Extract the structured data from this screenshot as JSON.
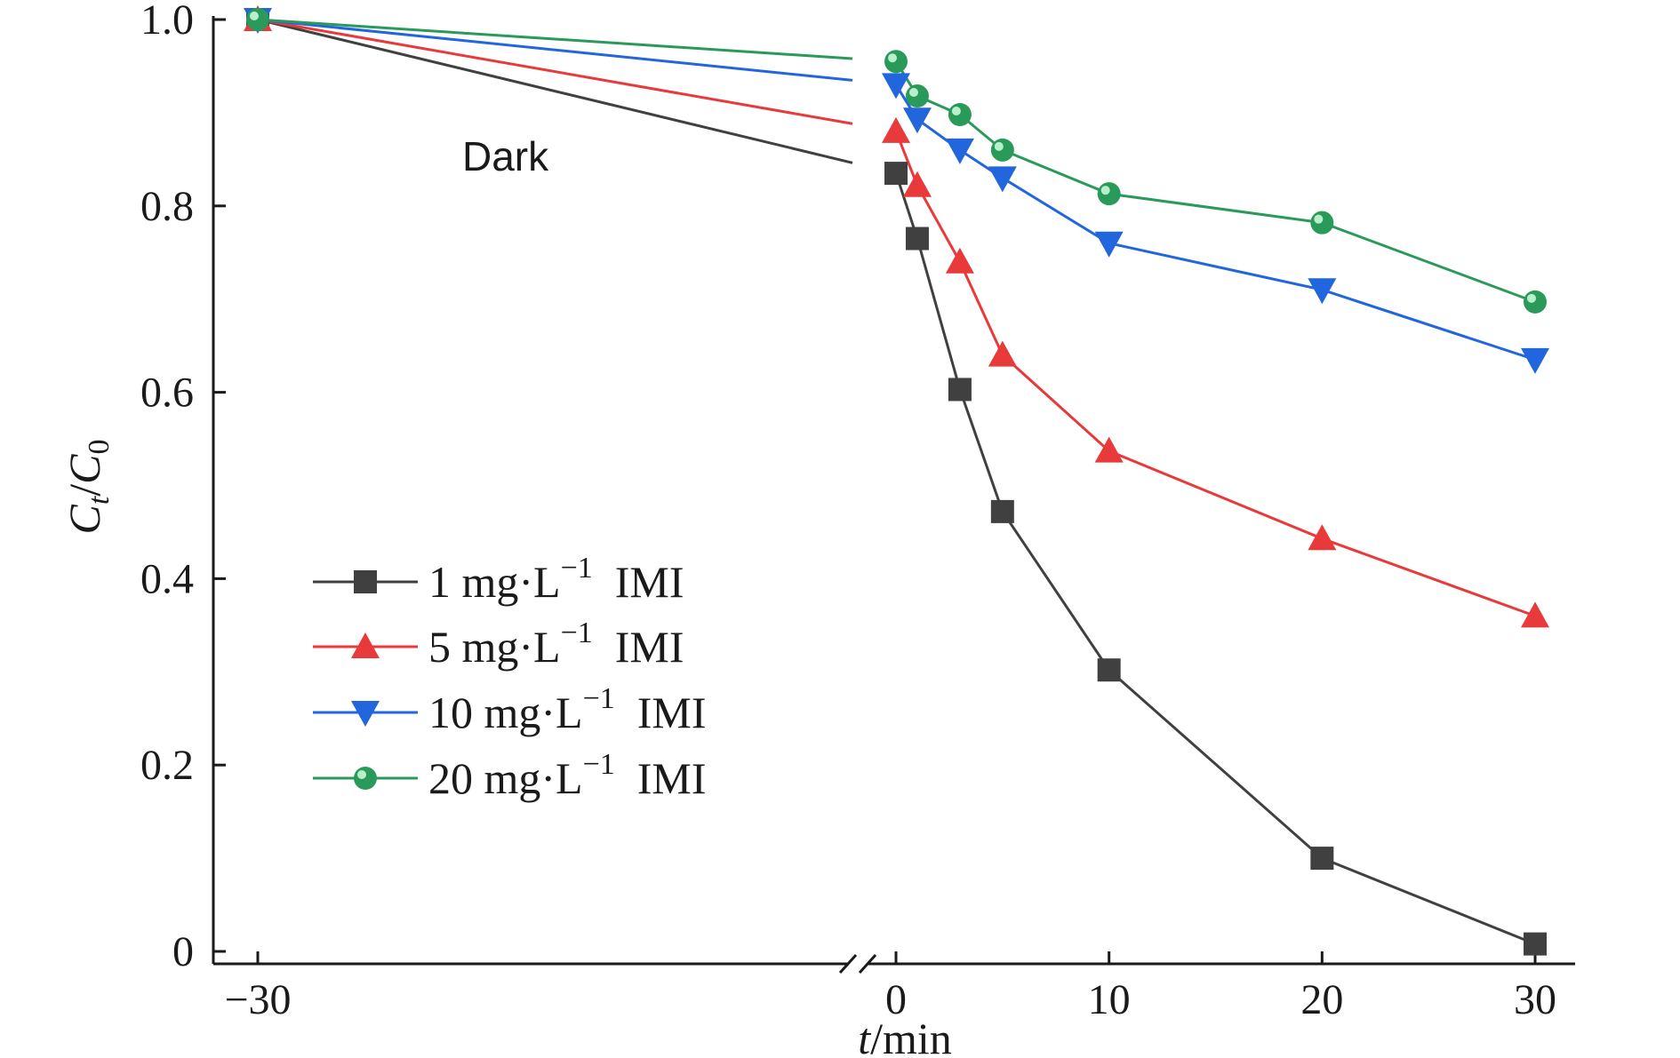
{
  "chart_data": {
    "type": "line",
    "title": "",
    "xlabel": "t/min",
    "ylabel": "Ct/C0",
    "x_ticks": [
      "−30",
      "0",
      "10",
      "20",
      "30"
    ],
    "y_ticks": [
      "0",
      "0.2",
      "0.4",
      "0.6",
      "0.8",
      "1.0"
    ],
    "ylim": [
      0,
      1.0
    ],
    "axis_break": "between −30 and 0",
    "annotation": "Dark",
    "legend_position": "lower-left",
    "series": [
      {
        "name": "1 mg·L⁻¹  IMI",
        "name_main": "1 mg·L",
        "name_sup": "−1",
        "name_tail": "IMI",
        "color": "#404040",
        "marker": "square",
        "x": [
          -30,
          0,
          1,
          3,
          5,
          10,
          20,
          30
        ],
        "y": [
          1.0,
          0.835,
          0.765,
          0.603,
          0.472,
          0.302,
          0.1,
          0.008
        ]
      },
      {
        "name": "5 mg·L⁻¹  IMI",
        "name_main": "5 mg·L",
        "name_sup": "−1",
        "name_tail": "IMI",
        "color": "#e83a3a",
        "marker": "triangle-up",
        "x": [
          -30,
          0,
          1,
          3,
          5,
          10,
          20,
          30
        ],
        "y": [
          1.0,
          0.88,
          0.822,
          0.74,
          0.64,
          0.537,
          0.443,
          0.36
        ]
      },
      {
        "name": "10 mg·L⁻¹  IMI",
        "name_main": "10 mg·L",
        "name_sup": "−1",
        "name_tail": "IMI",
        "color": "#2266dd",
        "marker": "triangle-down",
        "x": [
          -30,
          0,
          1,
          3,
          5,
          10,
          20,
          30
        ],
        "y": [
          1.0,
          0.93,
          0.893,
          0.86,
          0.83,
          0.76,
          0.71,
          0.635
        ]
      },
      {
        "name": "20 mg·L⁻¹  IMI",
        "name_main": "20 mg·L",
        "name_sup": "−1",
        "name_tail": "IMI",
        "color": "#2a9a5a",
        "marker": "circle",
        "x": [
          -30,
          0,
          1,
          3,
          5,
          10,
          20,
          30
        ],
        "y": [
          1.0,
          0.955,
          0.918,
          0.898,
          0.86,
          0.813,
          0.782,
          0.697
        ]
      }
    ]
  }
}
